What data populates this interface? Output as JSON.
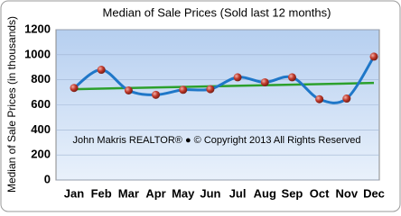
{
  "chart_data": {
    "type": "line",
    "title": "Median of Sale Prices (Sold last 12 months)",
    "y_label": "Median of Sale Prices (in thousands)",
    "annotation": "John Makris REALTOR®  ●  © Copyright 2013 All Rights Reserved",
    "categories": [
      "Jan",
      "Feb",
      "Mar",
      "Apr",
      "May",
      "Jun",
      "Jul",
      "Aug",
      "Sep",
      "Oct",
      "Nov",
      "Dec"
    ],
    "series": [
      {
        "color": "#1f77c8",
        "values": [
          735,
          880,
          715,
          680,
          720,
          725,
          820,
          780,
          820,
          645,
          650,
          985
        ]
      }
    ],
    "trendline": {
      "color": "#2ca02c",
      "values": [
        725,
        775
      ]
    },
    "ylim": [
      0,
      1200
    ],
    "yticks": [
      0,
      200,
      400,
      600,
      800,
      1000,
      1200
    ],
    "grid": true
  }
}
